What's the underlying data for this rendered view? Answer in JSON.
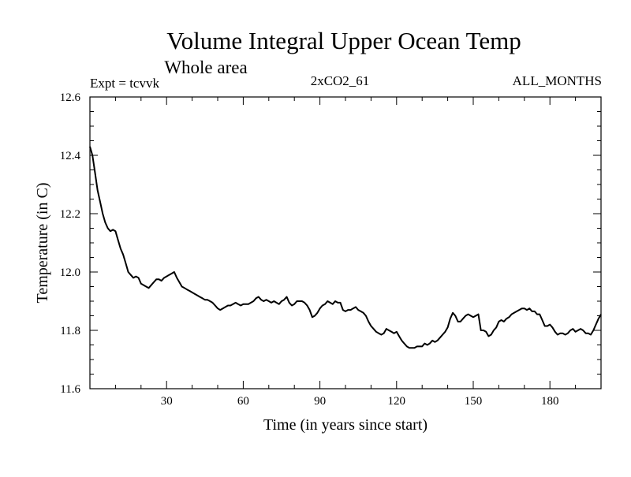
{
  "chart_data": {
    "type": "line",
    "title": "Volume Integral Upper Ocean Temp",
    "subtitle": "Whole area",
    "annotations": {
      "experiment": "Expt = tcvvk",
      "run": "2xCO2_61",
      "months": "ALL_MONTHS"
    },
    "xlabel": "Time (in years since start)",
    "ylabel": "Temperature (in C)",
    "xlim": [
      0,
      200
    ],
    "ylim": [
      11.6,
      12.6
    ],
    "x_ticks": [
      30,
      60,
      90,
      120,
      150,
      180
    ],
    "y_ticks": [
      11.6,
      11.8,
      12.0,
      12.2,
      12.4,
      12.6
    ],
    "y_tick_labels": [
      "11.6",
      "11.8",
      "12.0",
      "12.2",
      "12.4",
      "12.6"
    ],
    "grid": false,
    "series": [
      {
        "color": "#000000",
        "points": [
          [
            0,
            12.43
          ],
          [
            1,
            12.4
          ],
          [
            2,
            12.34
          ],
          [
            3,
            12.28
          ],
          [
            4,
            12.24
          ],
          [
            5,
            12.2
          ],
          [
            6,
            12.17
          ],
          [
            7,
            12.15
          ],
          [
            8,
            12.14
          ],
          [
            9,
            12.145
          ],
          [
            10,
            12.14
          ],
          [
            11,
            12.11
          ],
          [
            12,
            12.08
          ],
          [
            13,
            12.06
          ],
          [
            14,
            12.03
          ],
          [
            15,
            12.0
          ],
          [
            16,
            11.99
          ],
          [
            17,
            11.98
          ],
          [
            18,
            11.985
          ],
          [
            19,
            11.98
          ],
          [
            20,
            11.96
          ],
          [
            21,
            11.955
          ],
          [
            22,
            11.95
          ],
          [
            23,
            11.945
          ],
          [
            24,
            11.955
          ],
          [
            25,
            11.965
          ],
          [
            26,
            11.975
          ],
          [
            27,
            11.975
          ],
          [
            28,
            11.97
          ],
          [
            29,
            11.98
          ],
          [
            30,
            11.985
          ],
          [
            31,
            11.99
          ],
          [
            32,
            11.995
          ],
          [
            33,
            12.0
          ],
          [
            34,
            11.98
          ],
          [
            35,
            11.965
          ],
          [
            36,
            11.95
          ],
          [
            37,
            11.945
          ],
          [
            38,
            11.94
          ],
          [
            39,
            11.935
          ],
          [
            40,
            11.93
          ],
          [
            41,
            11.925
          ],
          [
            42,
            11.92
          ],
          [
            43,
            11.915
          ],
          [
            44,
            11.91
          ],
          [
            45,
            11.905
          ],
          [
            46,
            11.905
          ],
          [
            47,
            11.9
          ],
          [
            48,
            11.895
          ],
          [
            49,
            11.885
          ],
          [
            50,
            11.875
          ],
          [
            51,
            11.87
          ],
          [
            52,
            11.875
          ],
          [
            53,
            11.88
          ],
          [
            54,
            11.885
          ],
          [
            55,
            11.885
          ],
          [
            56,
            11.89
          ],
          [
            57,
            11.895
          ],
          [
            58,
            11.89
          ],
          [
            59,
            11.885
          ],
          [
            60,
            11.89
          ],
          [
            61,
            11.89
          ],
          [
            62,
            11.89
          ],
          [
            63,
            11.895
          ],
          [
            64,
            11.9
          ],
          [
            65,
            11.91
          ],
          [
            66,
            11.915
          ],
          [
            67,
            11.905
          ],
          [
            68,
            11.9
          ],
          [
            69,
            11.905
          ],
          [
            70,
            11.9
          ],
          [
            71,
            11.895
          ],
          [
            72,
            11.9
          ],
          [
            73,
            11.895
          ],
          [
            74,
            11.89
          ],
          [
            75,
            11.9
          ],
          [
            76,
            11.905
          ],
          [
            77,
            11.915
          ],
          [
            78,
            11.895
          ],
          [
            79,
            11.885
          ],
          [
            80,
            11.89
          ],
          [
            81,
            11.9
          ],
          [
            82,
            11.9
          ],
          [
            83,
            11.9
          ],
          [
            84,
            11.895
          ],
          [
            85,
            11.885
          ],
          [
            86,
            11.87
          ],
          [
            87,
            11.845
          ],
          [
            88,
            11.85
          ],
          [
            89,
            11.86
          ],
          [
            90,
            11.875
          ],
          [
            91,
            11.885
          ],
          [
            92,
            11.89
          ],
          [
            93,
            11.9
          ],
          [
            94,
            11.895
          ],
          [
            95,
            11.89
          ],
          [
            96,
            11.9
          ],
          [
            97,
            11.895
          ],
          [
            98,
            11.895
          ],
          [
            99,
            11.87
          ],
          [
            100,
            11.865
          ],
          [
            101,
            11.87
          ],
          [
            102,
            11.87
          ],
          [
            103,
            11.875
          ],
          [
            104,
            11.88
          ],
          [
            105,
            11.87
          ],
          [
            106,
            11.865
          ],
          [
            107,
            11.86
          ],
          [
            108,
            11.85
          ],
          [
            109,
            11.83
          ],
          [
            110,
            11.815
          ],
          [
            111,
            11.805
          ],
          [
            112,
            11.795
          ],
          [
            113,
            11.79
          ],
          [
            114,
            11.785
          ],
          [
            115,
            11.79
          ],
          [
            116,
            11.805
          ],
          [
            117,
            11.8
          ],
          [
            118,
            11.795
          ],
          [
            119,
            11.79
          ],
          [
            120,
            11.795
          ],
          [
            121,
            11.78
          ],
          [
            122,
            11.765
          ],
          [
            123,
            11.755
          ],
          [
            124,
            11.745
          ],
          [
            125,
            11.74
          ],
          [
            126,
            11.74
          ],
          [
            127,
            11.74
          ],
          [
            128,
            11.745
          ],
          [
            129,
            11.745
          ],
          [
            130,
            11.745
          ],
          [
            131,
            11.755
          ],
          [
            132,
            11.75
          ],
          [
            133,
            11.755
          ],
          [
            134,
            11.765
          ],
          [
            135,
            11.76
          ],
          [
            136,
            11.765
          ],
          [
            137,
            11.775
          ],
          [
            138,
            11.785
          ],
          [
            139,
            11.795
          ],
          [
            140,
            11.81
          ],
          [
            141,
            11.84
          ],
          [
            142,
            11.86
          ],
          [
            143,
            11.85
          ],
          [
            144,
            11.83
          ],
          [
            145,
            11.83
          ],
          [
            146,
            11.84
          ],
          [
            147,
            11.85
          ],
          [
            148,
            11.855
          ],
          [
            149,
            11.85
          ],
          [
            150,
            11.845
          ],
          [
            151,
            11.85
          ],
          [
            152,
            11.855
          ],
          [
            153,
            11.8
          ],
          [
            154,
            11.8
          ],
          [
            155,
            11.795
          ],
          [
            156,
            11.78
          ],
          [
            157,
            11.785
          ],
          [
            158,
            11.8
          ],
          [
            159,
            11.81
          ],
          [
            160,
            11.83
          ],
          [
            161,
            11.835
          ],
          [
            162,
            11.83
          ],
          [
            163,
            11.84
          ],
          [
            164,
            11.845
          ],
          [
            165,
            11.855
          ],
          [
            166,
            11.86
          ],
          [
            167,
            11.865
          ],
          [
            168,
            11.87
          ],
          [
            169,
            11.875
          ],
          [
            170,
            11.875
          ],
          [
            171,
            11.87
          ],
          [
            172,
            11.875
          ],
          [
            173,
            11.865
          ],
          [
            174,
            11.865
          ],
          [
            175,
            11.855
          ],
          [
            176,
            11.855
          ],
          [
            177,
            11.835
          ],
          [
            178,
            11.815
          ],
          [
            179,
            11.815
          ],
          [
            180,
            11.82
          ],
          [
            181,
            11.81
          ],
          [
            182,
            11.795
          ],
          [
            183,
            11.785
          ],
          [
            184,
            11.79
          ],
          [
            185,
            11.79
          ],
          [
            186,
            11.785
          ],
          [
            187,
            11.79
          ],
          [
            188,
            11.8
          ],
          [
            189,
            11.805
          ],
          [
            190,
            11.795
          ],
          [
            191,
            11.8
          ],
          [
            192,
            11.805
          ],
          [
            193,
            11.8
          ],
          [
            194,
            11.79
          ],
          [
            195,
            11.79
          ],
          [
            196,
            11.785
          ],
          [
            197,
            11.8
          ],
          [
            198,
            11.82
          ],
          [
            199,
            11.84
          ],
          [
            200,
            11.855
          ]
        ]
      }
    ]
  }
}
